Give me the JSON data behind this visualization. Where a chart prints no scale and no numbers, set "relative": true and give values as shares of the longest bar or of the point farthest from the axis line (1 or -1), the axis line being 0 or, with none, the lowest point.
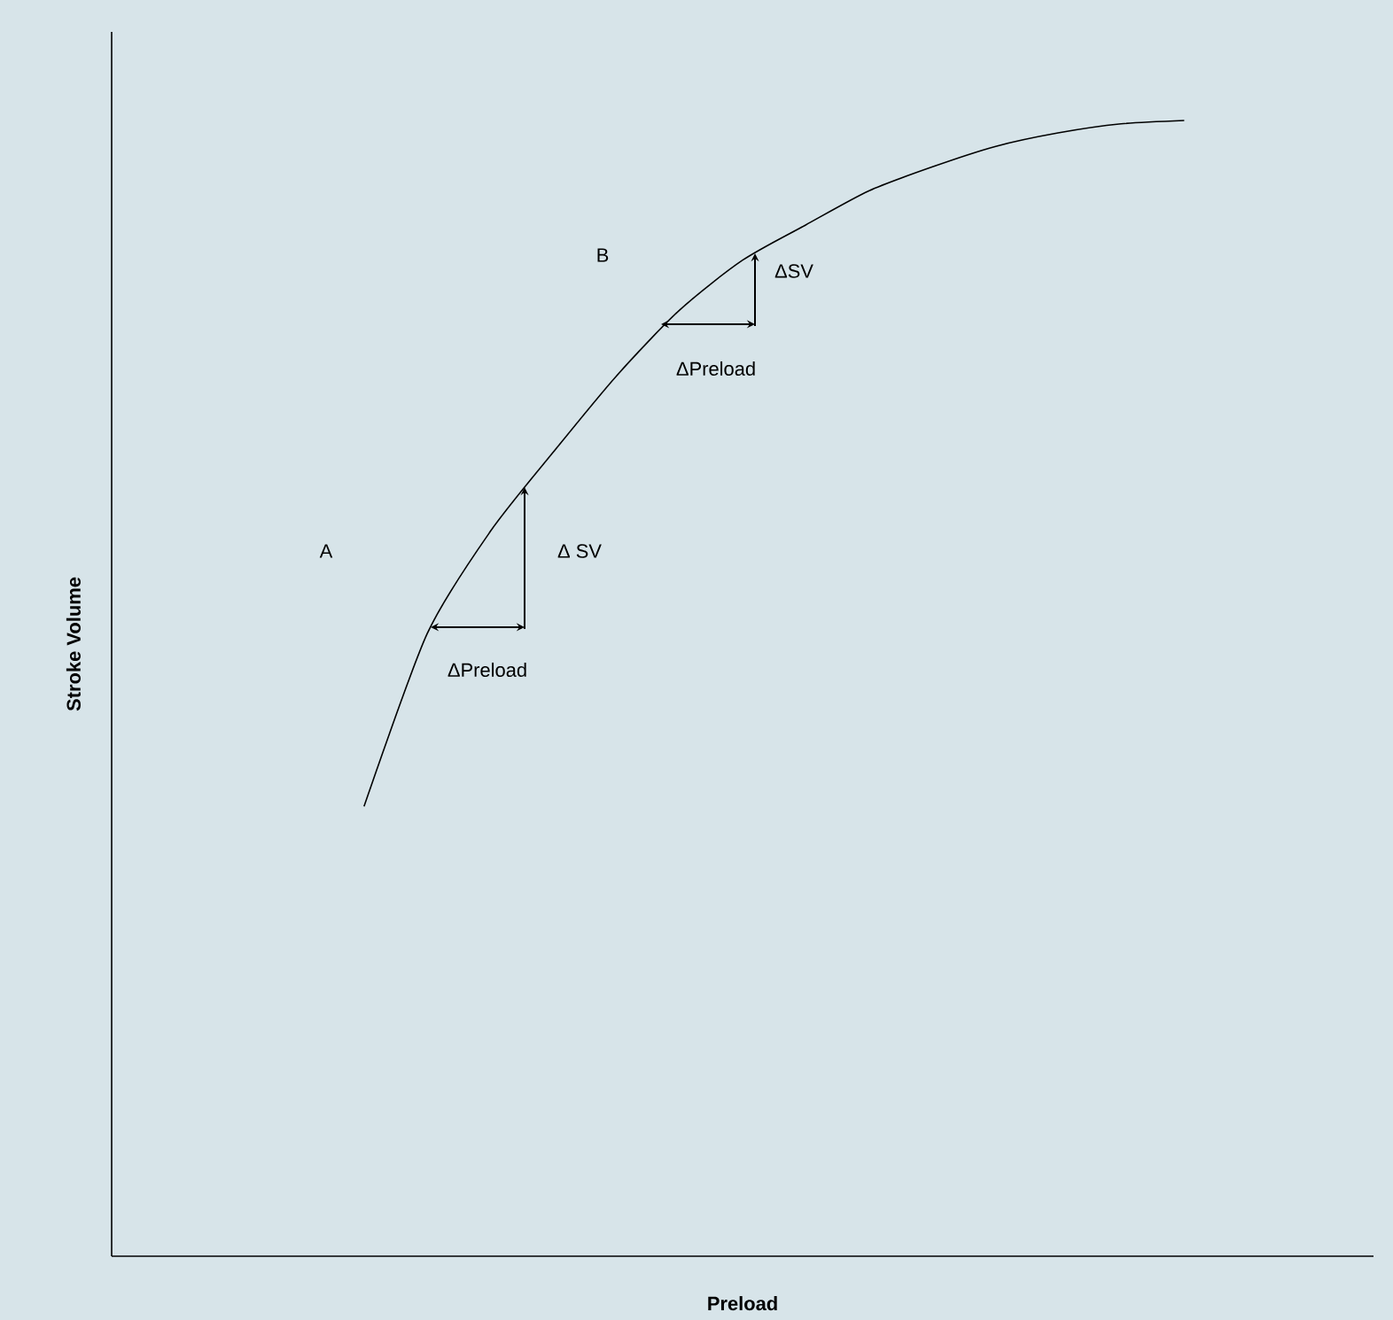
{
  "chart_data": {
    "type": "line",
    "relative": true,
    "color": "#000000",
    "xlabel": "Preload",
    "ylabel": "Stroke Volume",
    "categories": [
      null,
      null,
      null,
      null,
      null,
      null,
      null,
      null,
      null,
      null,
      null,
      null,
      null,
      null,
      null,
      null,
      null,
      null,
      null,
      null,
      null
    ],
    "values": [
      null,
      null,
      null,
      null,
      0.396,
      0.548,
      0.638,
      0.708,
      0.775,
      0.833,
      0.877,
      0.908,
      0.938,
      0.959,
      0.977,
      0.989,
      0.997,
      1.0,
      null,
      null,
      null
    ],
    "annotations": [
      "A",
      "B",
      "ΔSV",
      "ΔPreload",
      "Δ SV",
      "ΔPreload"
    ]
  }
}
